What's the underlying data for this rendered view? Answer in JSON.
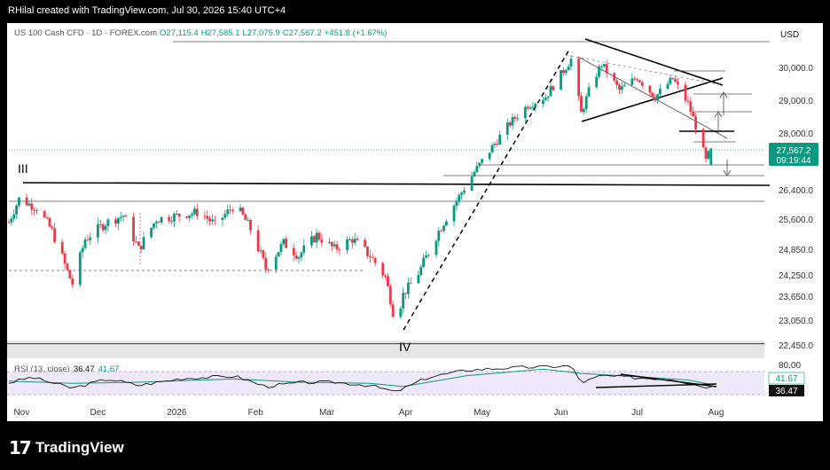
{
  "header": {
    "text": "RHilal created with TradingView.com, Jul 30, 2026 15:40 UTC+4"
  },
  "footer": {
    "brand": "TradingView",
    "logo_glyph": "17"
  },
  "chart_data": {
    "type": "candlestick",
    "symbol": "US 100 Cash CFD · 1D · FOREX.com",
    "ohlc": {
      "open": "O27,115.4",
      "high": "H27,585.1",
      "low": "L27,075.9",
      "close": "C27,567.2",
      "change": "+451.8 (+1.67%)"
    },
    "currency": "USD",
    "last_price": "27,567.2",
    "countdown": "09:19:44",
    "colors": {
      "up": "#089981",
      "down": "#f23645",
      "rsi": "#111111",
      "rsi_ma": "#089981",
      "rsi_band": "#7e57c2"
    },
    "y_ticks": [
      "30,000.0",
      "29,000.0",
      "28,000.0",
      "26,400.0",
      "25,600.0",
      "24,850.0",
      "24,250.0",
      "23,650.0",
      "23,050.0",
      "22,450.0"
    ],
    "y_tick_values": [
      30000,
      29000,
      28000,
      26400,
      25600,
      24850,
      24250,
      23650,
      23050,
      22450
    ],
    "x_ticks": [
      "Nov",
      "Dec",
      "2026",
      "Feb",
      "Mar",
      "Apr",
      "May",
      "Jun",
      "Jul",
      "Aug"
    ],
    "x_tick_dates": [
      "2025-11-01",
      "2025-12-01",
      "2026-01-01",
      "2026-02-01",
      "2026-03-01",
      "2026-04-01",
      "2026-05-01",
      "2026-06-01",
      "2026-07-01",
      "2026-08-01"
    ],
    "date_range": [
      "2025-10-27",
      "2026-08-20"
    ],
    "anchors": [
      [
        "2025-10-27",
        25520
      ],
      [
        "2025-10-31",
        26150
      ],
      [
        "2025-11-07",
        25900
      ],
      [
        "2025-11-13",
        25300
      ],
      [
        "2025-11-21",
        24000
      ],
      [
        "2025-11-26",
        25100
      ],
      [
        "2025-12-04",
        25500
      ],
      [
        "2025-12-11",
        25700
      ],
      [
        "2025-12-17",
        24850
      ],
      [
        "2025-12-24",
        25600
      ],
      [
        "2026-01-02",
        25700
      ],
      [
        "2026-01-10",
        25800
      ],
      [
        "2026-01-16",
        25450
      ],
      [
        "2026-01-24",
        26000
      ],
      [
        "2026-01-30",
        25350
      ],
      [
        "2026-02-05",
        24400
      ],
      [
        "2026-02-12",
        25000
      ],
      [
        "2026-02-18",
        24700
      ],
      [
        "2026-02-25",
        25200
      ],
      [
        "2026-03-04",
        24850
      ],
      [
        "2026-03-11",
        25100
      ],
      [
        "2026-03-18",
        24700
      ],
      [
        "2026-03-24",
        24200
      ],
      [
        "2026-03-28",
        22950
      ],
      [
        "2026-03-31",
        23700
      ],
      [
        "2026-04-07",
        24400
      ],
      [
        "2026-04-14",
        25300
      ],
      [
        "2026-04-21",
        26100
      ],
      [
        "2026-04-28",
        26900
      ],
      [
        "2026-05-05",
        27600
      ],
      [
        "2026-05-12",
        28300
      ],
      [
        "2026-05-19",
        28850
      ],
      [
        "2026-05-26",
        29100
      ],
      [
        "2026-06-02",
        29900
      ],
      [
        "2026-06-05",
        30250
      ],
      [
        "2026-06-09",
        28600
      ],
      [
        "2026-06-13",
        29500
      ],
      [
        "2026-06-17",
        30100
      ],
      [
        "2026-06-24",
        29300
      ],
      [
        "2026-07-01",
        29700
      ],
      [
        "2026-07-08",
        29100
      ],
      [
        "2026-07-15",
        29650
      ],
      [
        "2026-07-21",
        28900
      ],
      [
        "2026-07-25",
        28000
      ],
      [
        "2026-07-28",
        27200
      ],
      [
        "2026-07-30",
        27567
      ]
    ],
    "levels": [
      {
        "name": "III",
        "value": 26550
      },
      {
        "name": "IV",
        "value": 22480
      }
    ],
    "rsi": {
      "label": "RSI (13, close)",
      "value": "36.47",
      "ma_value": "41.67",
      "y_ticks": [
        "80.00"
      ],
      "badges": [
        "41.67",
        "36.47"
      ],
      "anchors": [
        [
          "2025-10-27",
          45
        ],
        [
          "2025-11-05",
          55
        ],
        [
          "2025-11-21",
          35
        ],
        [
          "2025-12-05",
          52
        ],
        [
          "2025-12-17",
          40
        ],
        [
          "2026-01-03",
          53
        ],
        [
          "2026-01-24",
          57
        ],
        [
          "2026-02-05",
          38
        ],
        [
          "2026-02-18",
          45
        ],
        [
          "2026-03-04",
          46
        ],
        [
          "2026-03-18",
          40
        ],
        [
          "2026-03-28",
          28
        ],
        [
          "2026-04-10",
          55
        ],
        [
          "2026-04-25",
          68
        ],
        [
          "2026-05-10",
          72
        ],
        [
          "2026-05-25",
          74
        ],
        [
          "2026-06-05",
          76
        ],
        [
          "2026-06-09",
          45
        ],
        [
          "2026-06-17",
          58
        ],
        [
          "2026-07-01",
          54
        ],
        [
          "2026-07-15",
          52
        ],
        [
          "2026-07-25",
          40
        ],
        [
          "2026-07-30",
          36.47
        ]
      ],
      "ma_anchors": [
        [
          "2025-10-27",
          48
        ],
        [
          "2025-11-21",
          44
        ],
        [
          "2025-12-17",
          46
        ],
        [
          "2026-01-24",
          52
        ],
        [
          "2026-02-18",
          46
        ],
        [
          "2026-03-18",
          44
        ],
        [
          "2026-03-31",
          38
        ],
        [
          "2026-04-25",
          58
        ],
        [
          "2026-05-25",
          70
        ],
        [
          "2026-06-09",
          62
        ],
        [
          "2026-07-01",
          56
        ],
        [
          "2026-07-21",
          50
        ],
        [
          "2026-07-30",
          41.67
        ]
      ]
    }
  }
}
